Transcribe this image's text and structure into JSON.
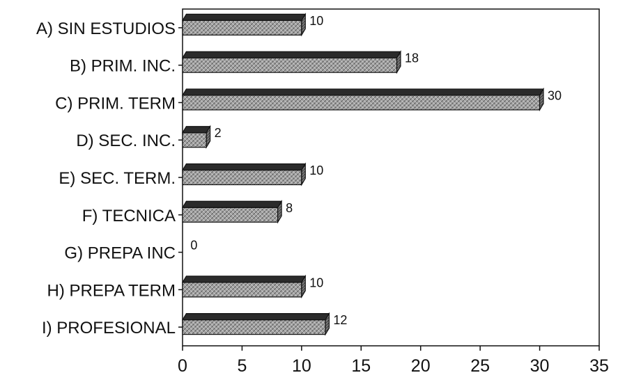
{
  "chart_data": {
    "type": "bar",
    "orientation": "horizontal",
    "categories": [
      "A) SIN ESTUDIOS",
      "B) PRIM. INC.",
      "C) PRIM. TERM",
      "D) SEC. INC.",
      "E) SEC. TERM.",
      "F) TECNICA",
      "G) PREPA INC",
      "H) PREPA TERM",
      "I) PROFESIONAL"
    ],
    "values": [
      10,
      18,
      30,
      2,
      10,
      8,
      0,
      10,
      12
    ],
    "data_labels": [
      "10",
      "18",
      "30",
      "2",
      "10",
      "8",
      "0",
      "10",
      "12"
    ],
    "xlim": [
      0,
      35
    ],
    "x_ticks": [
      "0",
      "5",
      "10",
      "15",
      "20",
      "25",
      "30",
      "35"
    ],
    "bar_style": "3d-hatched",
    "colors": {
      "bar_face": "#9a9a9a",
      "bar_top": "#2b2b2b",
      "bar_side": "#5a5a5a",
      "axis": "#111111"
    },
    "grid": false,
    "legend": "none"
  }
}
